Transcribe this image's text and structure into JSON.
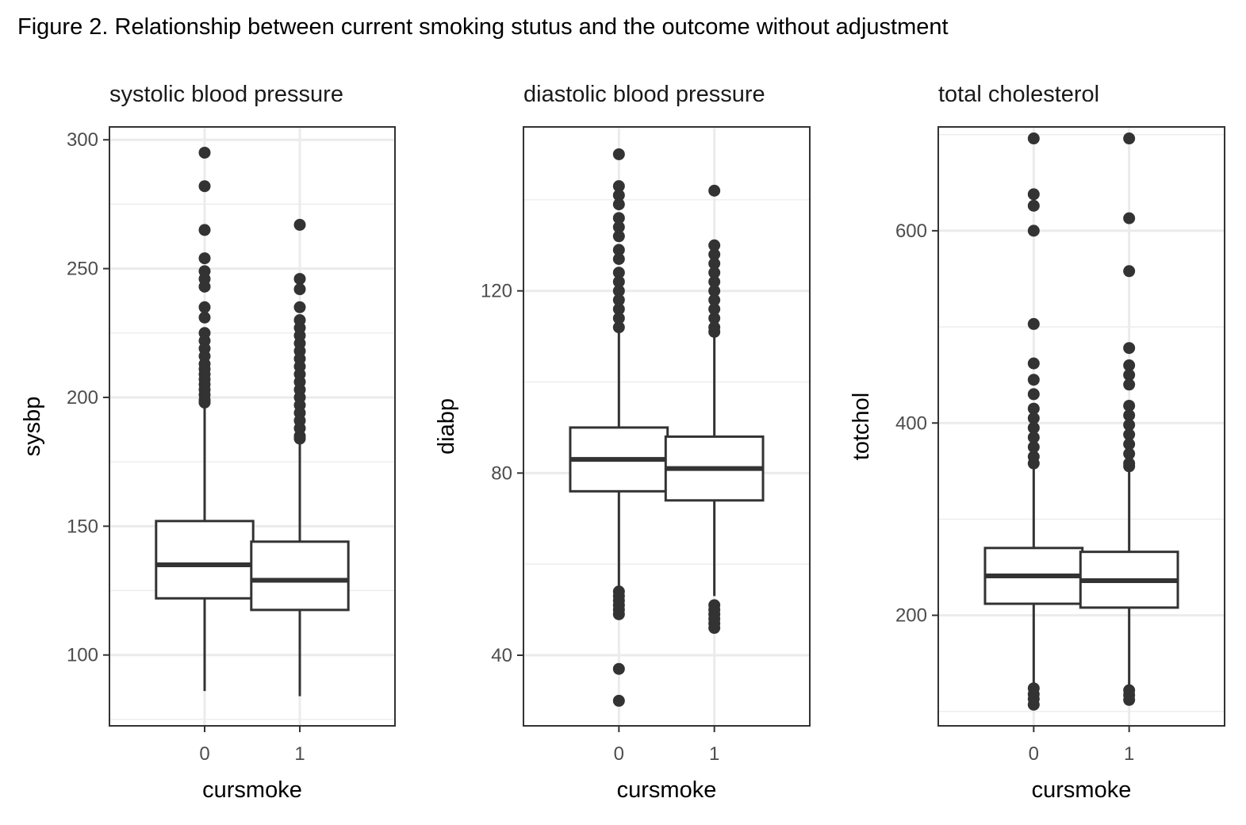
{
  "figure": {
    "title": "Figure 2. Relationship between current smoking stutus and the outcome without adjustment"
  },
  "chart_data": [
    {
      "type": "box",
      "title": "systolic blood pressure",
      "xlabel": "cursmoke",
      "ylabel": "sysbp",
      "categories": [
        "0",
        "1"
      ],
      "ylim": [
        72.5,
        305
      ],
      "yticks": [
        100,
        150,
        200,
        250,
        300
      ],
      "yticks_labels": [
        "100",
        "150",
        "200",
        "250",
        "300"
      ],
      "grid": true,
      "boxes": [
        {
          "category": "0",
          "whisker_low": 86,
          "q1": 122,
          "median": 135,
          "q3": 152,
          "whisker_high": 197,
          "outliers": [
            295,
            282,
            265,
            254,
            249,
            246,
            243,
            235,
            231,
            225,
            222,
            219,
            216,
            213,
            211,
            209,
            207,
            205,
            203,
            201,
            199,
            198
          ]
        },
        {
          "category": "1",
          "whisker_low": 84,
          "q1": 117.5,
          "median": 129,
          "q3": 144,
          "whisker_high": 183,
          "outliers": [
            267,
            246,
            242,
            235,
            230,
            227,
            224,
            221,
            218,
            215,
            212,
            209,
            206,
            203,
            200,
            197,
            194,
            191,
            188,
            185,
            184
          ]
        }
      ]
    },
    {
      "type": "box",
      "title": "diastolic blood pressure",
      "xlabel": "cursmoke",
      "ylabel": "diabp",
      "categories": [
        "0",
        "1"
      ],
      "ylim": [
        24.5,
        156
      ],
      "yticks": [
        40,
        80,
        120
      ],
      "yticks_labels": [
        "40",
        "80",
        "120"
      ],
      "grid": true,
      "boxes": [
        {
          "category": "0",
          "whisker_low": 55,
          "q1": 76,
          "median": 83,
          "q3": 90,
          "whisker_high": 111,
          "outliers": [
            150,
            143,
            141,
            139,
            136,
            134,
            132,
            129,
            127,
            124,
            122,
            120,
            118,
            116,
            114,
            112,
            54,
            53,
            52,
            51,
            50,
            49,
            37,
            30
          ]
        },
        {
          "category": "1",
          "whisker_low": 53,
          "q1": 74,
          "median": 81,
          "q3": 88,
          "whisker_high": 110,
          "outliers": [
            142,
            130,
            128,
            126,
            124,
            122,
            120,
            118,
            116,
            114,
            112,
            111,
            51,
            50,
            49,
            48,
            47,
            46
          ]
        }
      ]
    },
    {
      "type": "box",
      "title": "total cholesterol",
      "xlabel": "cursmoke",
      "ylabel": "totchol",
      "categories": [
        "0",
        "1"
      ],
      "ylim": [
        85,
        708
      ],
      "yticks": [
        200,
        400,
        600
      ],
      "yticks_labels": [
        "200",
        "400",
        "600"
      ],
      "grid": true,
      "boxes": [
        {
          "category": "0",
          "whisker_low": 120,
          "q1": 212,
          "median": 241,
          "q3": 270,
          "whisker_high": 356,
          "outliers": [
            696,
            638,
            626,
            600,
            503,
            462,
            445,
            430,
            415,
            405,
            395,
            385,
            375,
            365,
            358,
            124,
            118,
            113,
            107
          ]
        },
        {
          "category": "1",
          "whisker_low": 122,
          "q1": 208,
          "median": 236,
          "q3": 266,
          "whisker_high": 352,
          "outliers": [
            696,
            613,
            558,
            478,
            460,
            450,
            440,
            418,
            408,
            398,
            388,
            378,
            368,
            358,
            355,
            122,
            117,
            112
          ]
        }
      ]
    }
  ]
}
